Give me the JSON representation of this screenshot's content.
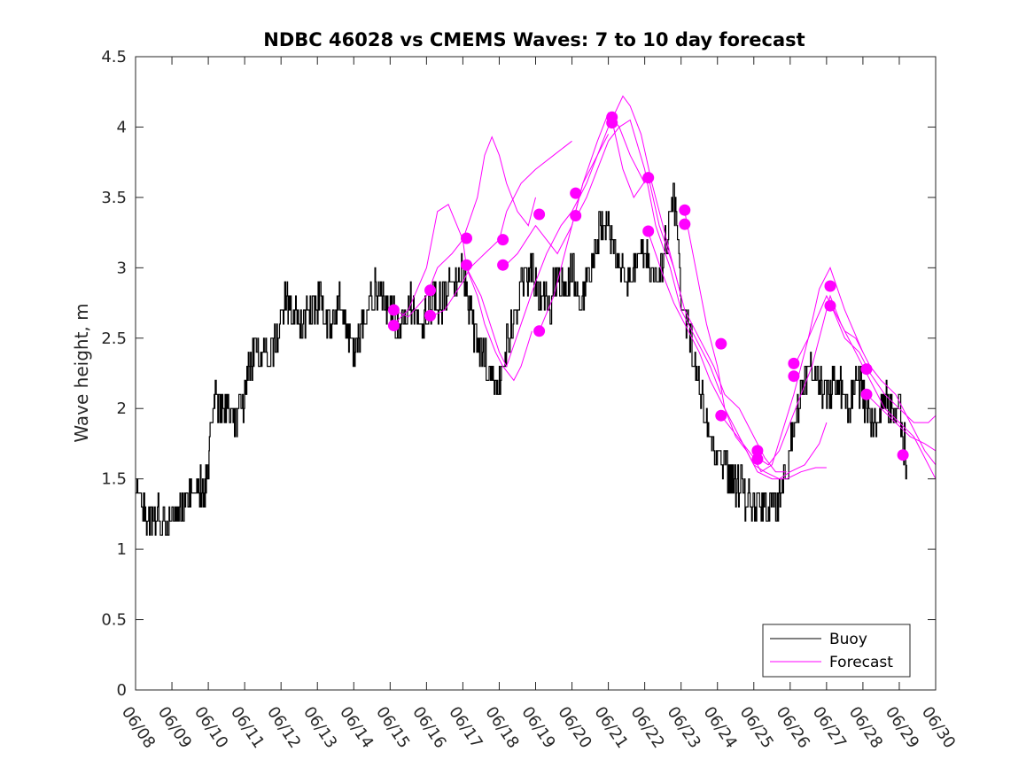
{
  "chart_data": {
    "type": "line",
    "title": "NDBC 46028 vs CMEMS Waves: 7 to 10 day forecast",
    "xlabel": "",
    "ylabel": "Wave height, m",
    "xlim": [
      "06/08",
      "06/30"
    ],
    "ylim": [
      0,
      4.5
    ],
    "x_ticks": [
      "06/08",
      "06/09",
      "06/10",
      "06/11",
      "06/12",
      "06/13",
      "06/14",
      "06/15",
      "06/16",
      "06/17",
      "06/18",
      "06/19",
      "06/20",
      "06/21",
      "06/22",
      "06/23",
      "06/24",
      "06/25",
      "06/26",
      "06/27",
      "06/28",
      "06/29",
      "06/30"
    ],
    "y_ticks": [
      "0",
      "0.5",
      "1",
      "1.5",
      "2",
      "2.5",
      "3",
      "3.5",
      "4",
      "4.5"
    ],
    "grid": false,
    "legend_position": "bottom-right",
    "colors": {
      "buoy": "#000000",
      "forecast": "#ff00ff"
    },
    "series": [
      {
        "name": "Buoy",
        "x_day_of_june": [
          8.0,
          8.2,
          8.3,
          8.5,
          8.7,
          8.9,
          9.1,
          9.3,
          9.5,
          9.7,
          9.9,
          10.0,
          10.1,
          10.2,
          10.4,
          10.6,
          10.8,
          11.0,
          11.1,
          11.3,
          11.5,
          11.7,
          11.9,
          12.1,
          12.2,
          12.4,
          12.6,
          12.8,
          13.0,
          13.2,
          13.4,
          13.6,
          13.8,
          14.0,
          14.2,
          14.4,
          14.6,
          14.8,
          15.0,
          15.2,
          15.4,
          15.6,
          15.8,
          16.0,
          16.2,
          16.4,
          16.6,
          16.8,
          17.0,
          17.2,
          17.4,
          17.6,
          17.8,
          18.0,
          18.2,
          18.4,
          18.6,
          18.8,
          19.0,
          19.2,
          19.4,
          19.6,
          19.8,
          20.0,
          20.2,
          20.4,
          20.6,
          20.8,
          21.0,
          21.2,
          21.4,
          21.6,
          21.8,
          22.0,
          22.2,
          22.4,
          22.6,
          22.8,
          23.0,
          23.2,
          23.4,
          23.6,
          23.8,
          24.0,
          24.2,
          24.4,
          24.6,
          24.8,
          25.0,
          25.2,
          25.4,
          25.6,
          25.8,
          26.0,
          26.2,
          26.4,
          26.6,
          26.8,
          27.0,
          27.2,
          27.4,
          27.6,
          27.8,
          28.0,
          28.2,
          28.4,
          28.6,
          28.8,
          29.0,
          29.2
        ],
        "values": [
          1.4,
          1.3,
          1.2,
          1.25,
          1.2,
          1.2,
          1.25,
          1.3,
          1.4,
          1.45,
          1.45,
          1.6,
          1.9,
          2.1,
          2.0,
          1.95,
          1.9,
          2.1,
          2.3,
          2.4,
          2.35,
          2.4,
          2.5,
          2.8,
          2.75,
          2.7,
          2.6,
          2.65,
          2.75,
          2.7,
          2.6,
          2.75,
          2.55,
          2.35,
          2.6,
          2.75,
          2.85,
          2.8,
          2.7,
          2.6,
          2.65,
          2.75,
          2.6,
          2.7,
          2.8,
          2.75,
          2.9,
          2.85,
          3.0,
          2.7,
          2.45,
          2.35,
          2.25,
          2.2,
          2.5,
          2.6,
          2.85,
          3.0,
          2.9,
          2.8,
          2.75,
          2.95,
          2.8,
          3.0,
          2.75,
          2.9,
          3.1,
          3.3,
          3.35,
          3.1,
          2.9,
          2.95,
          3.0,
          3.1,
          3.0,
          2.9,
          3.2,
          3.5,
          2.8,
          2.6,
          2.3,
          2.0,
          1.8,
          1.7,
          1.55,
          1.5,
          1.45,
          1.35,
          1.3,
          1.3,
          1.3,
          1.3,
          1.4,
          1.7,
          2.0,
          2.25,
          2.3,
          2.2,
          2.1,
          2.2,
          2.15,
          2.0,
          2.2,
          2.1,
          1.95,
          1.9,
          2.1,
          2.0,
          2.0,
          1.6
        ]
      },
      {
        "name": "Forecast",
        "runs": [
          {
            "x_day_of_june": [
              15.1,
              15.5,
              16.0,
              16.3,
              16.6,
              17.0,
              17.1,
              17.4,
              17.6,
              17.9,
              18.1,
              18.4,
              18.6,
              18.9
            ],
            "values": [
              2.6,
              2.7,
              3.0,
              3.4,
              3.45,
              3.2,
              3.0,
              2.8,
              2.6,
              2.4,
              2.3,
              2.2,
              2.3,
              2.55
            ]
          },
          {
            "x_day_of_june": [
              15.1,
              15.5,
              16.0,
              16.3,
              16.7,
              17.0,
              17.4,
              17.6,
              17.8,
              18.0,
              18.2,
              18.5,
              18.8,
              19.0
            ],
            "values": [
              2.7,
              2.65,
              2.8,
              3.0,
              3.1,
              3.2,
              3.5,
              3.8,
              3.93,
              3.8,
              3.6,
              3.4,
              3.3,
              3.5
            ]
          },
          {
            "x_day_of_june": [
              16.1,
              16.5,
              17.0,
              17.2,
              17.6,
              18.0,
              18.2,
              18.6,
              19.0,
              19.5,
              20.0
            ],
            "values": [
              2.65,
              2.7,
              2.9,
              3.0,
              3.1,
              3.2,
              3.4,
              3.6,
              3.7,
              3.8,
              3.9
            ]
          },
          {
            "x_day_of_june": [
              17.1,
              17.5,
              18.0,
              18.2,
              18.6,
              19.0,
              19.3,
              19.7,
              20.0,
              20.4,
              20.7,
              21.0
            ],
            "values": [
              3.0,
              2.8,
              2.4,
              2.3,
              2.6,
              2.9,
              3.1,
              3.3,
              3.4,
              3.6,
              3.8,
              3.95
            ]
          },
          {
            "x_day_of_june": [
              18.1,
              18.5,
              19.0,
              19.3,
              19.6,
              20.0,
              20.3,
              20.7,
              21.0,
              21.3,
              21.6,
              22.0
            ],
            "values": [
              3.0,
              3.1,
              3.3,
              3.2,
              3.1,
              3.3,
              3.6,
              3.9,
              4.1,
              4.0,
              3.8,
              3.6
            ]
          },
          {
            "x_day_of_june": [
              19.1,
              19.5,
              20.0,
              20.3,
              20.7,
              21.0,
              21.4,
              21.6,
              21.9,
              22.2,
              22.6,
              23.0
            ],
            "values": [
              2.55,
              2.8,
              3.3,
              3.6,
              3.8,
              4.0,
              4.22,
              4.15,
              3.95,
              3.6,
              3.2,
              2.8
            ]
          },
          {
            "x_day_of_june": [
              20.1,
              20.4,
              20.7,
              21.0,
              21.3,
              21.6,
              22.0,
              22.3,
              22.7,
              23.0,
              23.4,
              23.8,
              24.1
            ],
            "values": [
              3.35,
              3.5,
              3.7,
              3.9,
              4.0,
              4.05,
              3.7,
              3.3,
              3.0,
              2.7,
              2.5,
              2.3,
              2.1
            ]
          },
          {
            "x_day_of_june": [
              21.1,
              21.4,
              21.7,
              22.1,
              22.4,
              22.8,
              23.1,
              23.5,
              23.9,
              24.2,
              24.6,
              25.0,
              25.3,
              25.6,
              25.9
            ],
            "values": [
              4.05,
              3.7,
              3.5,
              3.65,
              3.3,
              3.0,
              2.7,
              2.5,
              2.3,
              2.1,
              2.0,
              1.8,
              1.65,
              1.55,
              1.55
            ]
          },
          {
            "x_day_of_june": [
              22.1,
              22.5,
              22.8,
              23.1,
              23.5,
              23.8,
              24.2,
              24.5,
              24.8,
              25.1,
              25.5,
              25.9,
              26.3,
              26.7,
              27.0
            ],
            "values": [
              3.25,
              2.95,
              2.75,
              2.6,
              2.4,
              2.2,
              2.0,
              1.85,
              1.7,
              1.55,
              1.5,
              1.5,
              1.55,
              1.58,
              1.58
            ]
          },
          {
            "x_day_of_june": [
              23.1,
              23.4,
              23.7,
              24.0,
              24.2,
              24.5,
              24.8,
              25.0,
              25.3,
              25.7,
              26.0,
              26.4,
              26.8,
              27.0
            ],
            "values": [
              3.4,
              3.0,
              2.6,
              2.3,
              2.0,
              1.8,
              1.7,
              1.6,
              1.55,
              1.5,
              1.55,
              1.6,
              1.75,
              1.9
            ]
          },
          {
            "x_day_of_june": [
              24.1,
              24.4,
              24.7,
              25.0,
              25.2,
              25.5,
              25.8,
              26.1,
              26.5,
              26.8,
              27.1,
              27.5,
              28.0
            ],
            "values": [
              1.95,
              1.85,
              1.75,
              1.65,
              1.55,
              1.6,
              1.85,
              2.1,
              2.5,
              2.85,
              3.0,
              2.7,
              2.4
            ]
          },
          {
            "x_day_of_june": [
              25.1,
              25.4,
              25.7,
              26.0,
              26.3,
              26.6,
              26.9,
              27.1,
              27.4,
              27.8,
              28.2,
              28.6,
              29.0,
              29.4,
              30.0
            ],
            "values": [
              1.65,
              1.6,
              1.7,
              1.9,
              2.1,
              2.3,
              2.6,
              2.8,
              2.6,
              2.4,
              2.2,
              2.0,
              1.9,
              1.8,
              1.5
            ]
          },
          {
            "x_day_of_june": [
              26.1,
              26.5,
              27.0,
              27.1,
              27.5,
              27.8,
              28.2,
              28.5,
              28.9,
              29.3,
              29.7,
              30.0
            ],
            "values": [
              2.3,
              2.5,
              2.8,
              2.75,
              2.55,
              2.5,
              2.3,
              2.2,
              2.1,
              1.9,
              1.7,
              1.6
            ]
          },
          {
            "x_day_of_june": [
              27.1,
              27.5,
              27.9,
              28.2,
              28.6,
              29.0,
              29.4,
              29.8,
              30.0
            ],
            "values": [
              2.75,
              2.5,
              2.4,
              2.25,
              2.1,
              2.0,
              1.9,
              1.9,
              1.95
            ]
          },
          {
            "x_day_of_june": [
              28.1,
              28.5,
              28.9,
              29.3,
              29.7,
              30.0
            ],
            "values": [
              2.1,
              2.0,
              1.9,
              1.8,
              1.75,
              1.7
            ]
          }
        ],
        "markers": {
          "x_day_of_june": [
            15.1,
            15.1,
            16.1,
            16.1,
            17.1,
            17.1,
            18.1,
            18.1,
            19.1,
            19.1,
            20.1,
            20.1,
            21.1,
            21.1,
            22.1,
            22.1,
            23.1,
            23.1,
            24.1,
            24.1,
            25.1,
            25.1,
            26.1,
            26.1,
            27.1,
            27.1,
            28.1,
            28.1,
            29.1
          ],
          "values": [
            2.7,
            2.59,
            2.84,
            2.66,
            3.21,
            3.02,
            3.2,
            3.02,
            3.38,
            2.55,
            3.53,
            3.37,
            4.07,
            4.03,
            3.64,
            3.26,
            3.41,
            3.31,
            2.46,
            1.95,
            1.7,
            1.64,
            2.32,
            2.23,
            2.87,
            2.73,
            2.28,
            2.1,
            1.67
          ]
        }
      }
    ]
  }
}
